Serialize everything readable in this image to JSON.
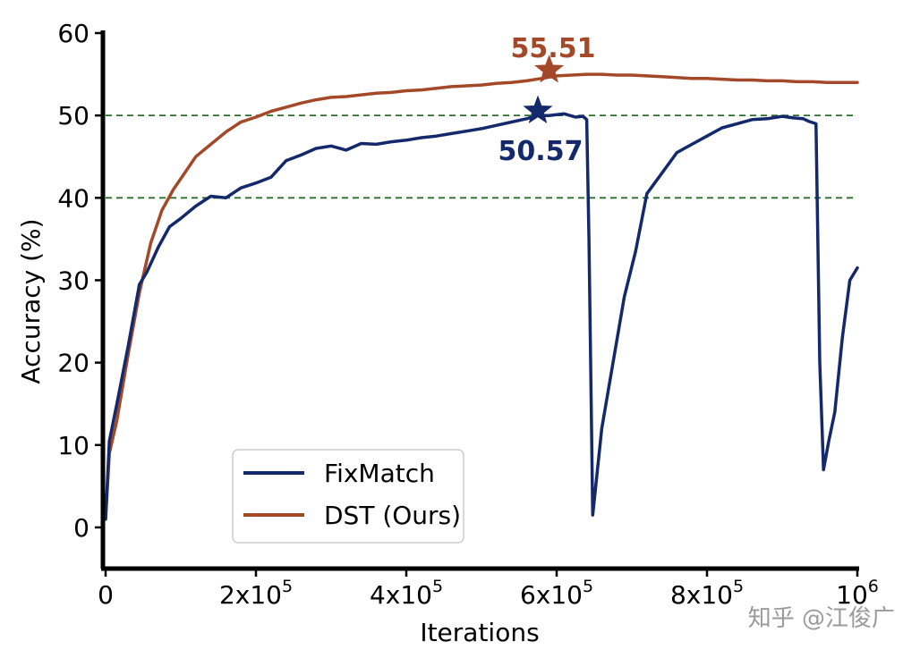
{
  "chart_data": {
    "type": "line",
    "xlabel": "Iterations",
    "ylabel": "Accuracy (%)",
    "xlim": [
      0,
      1000000
    ],
    "ylim": [
      -5,
      60
    ],
    "xticks": [
      {
        "value": 0,
        "base": "0",
        "exp": ""
      },
      {
        "value": 200000,
        "base": "2x10",
        "exp": "5"
      },
      {
        "value": 400000,
        "base": "4x10",
        "exp": "5"
      },
      {
        "value": 600000,
        "base": "6x10",
        "exp": "5"
      },
      {
        "value": 800000,
        "base": "8x10",
        "exp": "5"
      },
      {
        "value": 1000000,
        "base": "10",
        "exp": "6"
      }
    ],
    "yticks": [
      0,
      10,
      20,
      30,
      40,
      50,
      60
    ],
    "hlines": [
      40,
      50
    ],
    "series": [
      {
        "name": "FixMatch",
        "color": "#14296b",
        "x": [
          0,
          5000,
          15000,
          30000,
          45000,
          55000,
          70000,
          85000,
          100000,
          120000,
          140000,
          160000,
          180000,
          200000,
          220000,
          240000,
          260000,
          280000,
          300000,
          320000,
          340000,
          360000,
          380000,
          400000,
          420000,
          440000,
          460000,
          480000,
          500000,
          520000,
          540000,
          560000,
          575000,
          590000,
          610000,
          625000,
          635000,
          640000,
          643000,
          648000,
          660000,
          675000,
          690000,
          705000,
          720000,
          740000,
          760000,
          780000,
          800000,
          820000,
          840000,
          860000,
          880000,
          900000,
          915000,
          928000,
          935000,
          945000,
          950000,
          955000,
          962000,
          970000,
          980000,
          990000,
          1000000
        ],
        "y": [
          1.0,
          10.5,
          15.0,
          22.0,
          29.5,
          31.0,
          34.0,
          36.5,
          37.5,
          39.0,
          40.2,
          40.0,
          41.2,
          41.8,
          42.5,
          44.5,
          45.2,
          46.0,
          46.3,
          45.8,
          46.6,
          46.5,
          46.8,
          47.0,
          47.3,
          47.5,
          47.8,
          48.1,
          48.4,
          48.8,
          49.2,
          49.6,
          50.0,
          50.0,
          50.2,
          49.8,
          49.9,
          49.5,
          35.0,
          1.5,
          12.0,
          20.0,
          28.0,
          33.5,
          40.5,
          43.0,
          45.5,
          46.5,
          47.5,
          48.5,
          49.0,
          49.5,
          49.6,
          49.9,
          49.7,
          49.6,
          49.3,
          49.0,
          20.0,
          7.0,
          10.5,
          14.0,
          23.0,
          30.0,
          31.5
        ]
      },
      {
        "name": "DST (Ours)",
        "color": "#a3492a",
        "x": [
          0,
          5000,
          15000,
          30000,
          45000,
          60000,
          75000,
          90000,
          105000,
          120000,
          140000,
          160000,
          180000,
          200000,
          220000,
          240000,
          260000,
          280000,
          300000,
          320000,
          340000,
          360000,
          380000,
          400000,
          420000,
          440000,
          460000,
          480000,
          500000,
          520000,
          540000,
          560000,
          580000,
          600000,
          620000,
          640000,
          660000,
          680000,
          700000,
          720000,
          740000,
          760000,
          780000,
          800000,
          820000,
          840000,
          860000,
          880000,
          900000,
          920000,
          940000,
          960000,
          980000,
          1000000
        ],
        "y": [
          1.0,
          9.0,
          13.0,
          21.0,
          28.5,
          34.5,
          38.5,
          41.0,
          43.0,
          45.0,
          46.5,
          48.0,
          49.2,
          49.8,
          50.5,
          51.0,
          51.5,
          51.9,
          52.2,
          52.3,
          52.5,
          52.7,
          52.8,
          53.0,
          53.1,
          53.3,
          53.5,
          53.6,
          53.7,
          53.9,
          54.0,
          54.2,
          54.5,
          54.8,
          54.9,
          55.0,
          55.0,
          54.9,
          54.9,
          54.8,
          54.7,
          54.6,
          54.5,
          54.5,
          54.4,
          54.3,
          54.3,
          54.2,
          54.2,
          54.1,
          54.1,
          54.0,
          54.0,
          54.0
        ]
      }
    ],
    "annotations": [
      {
        "text": "55.51",
        "x": 590000,
        "y": 55.51,
        "color": "#a3492a",
        "marker": "star"
      },
      {
        "text": "50.57",
        "x": 575000,
        "y": 50.57,
        "color": "#14296b",
        "marker": "star"
      }
    ],
    "legend": {
      "position": "lower-center",
      "entries": [
        "FixMatch",
        "DST (Ours)"
      ]
    },
    "grid": false
  },
  "watermark": "知乎 @江俊广"
}
